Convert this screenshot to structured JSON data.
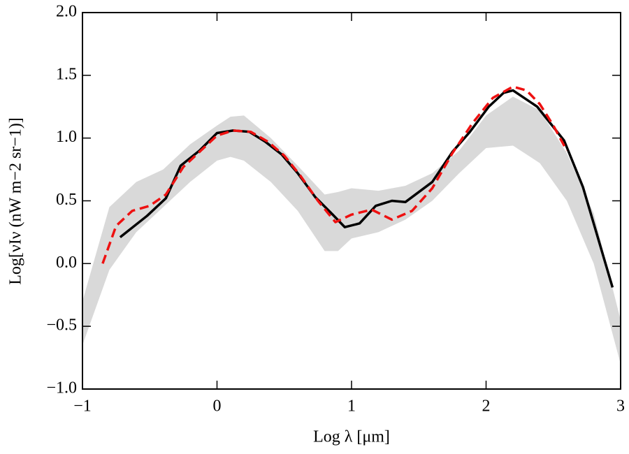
{
  "chart_data": {
    "type": "line",
    "x_label": "Log λ [μm]",
    "y_label": "Log[νIν (nW m−2 sr−1)]",
    "xlim": [
      -1,
      3
    ],
    "ylim": [
      -1,
      2
    ],
    "xticks": [
      {
        "value": -1,
        "label": "−1"
      },
      0,
      1,
      2,
      3
    ],
    "yticks": [
      {
        "value": -1,
        "label": "−1.0"
      },
      {
        "value": -0.5,
        "label": "−0.5"
      },
      {
        "value": 0,
        "label": "0.0"
      },
      {
        "value": 0.5,
        "label": "0.5"
      },
      {
        "value": 1,
        "label": "1.0"
      },
      {
        "value": 1.5,
        "label": "1.5"
      },
      {
        "value": 2,
        "label": "2.0"
      }
    ],
    "band": {
      "color": "#d9d9d9",
      "x": [
        -1,
        -0.8,
        -0.6,
        -0.4,
        -0.2,
        0,
        0.1,
        0.2,
        0.4,
        0.6,
        0.8,
        0.9,
        1.0,
        1.2,
        1.4,
        1.6,
        1.8,
        2.0,
        2.2,
        2.4,
        2.6,
        2.8,
        3.0
      ],
      "lower": [
        -0.65,
        -0.05,
        0.25,
        0.45,
        0.65,
        0.82,
        0.85,
        0.82,
        0.65,
        0.42,
        0.1,
        0.1,
        0.2,
        0.25,
        0.35,
        0.5,
        0.72,
        0.92,
        0.94,
        0.8,
        0.5,
        0.0,
        -0.8
      ],
      "upper": [
        -0.3,
        0.45,
        0.65,
        0.75,
        0.95,
        1.1,
        1.17,
        1.18,
        1.0,
        0.78,
        0.55,
        0.57,
        0.6,
        0.58,
        0.62,
        0.72,
        0.9,
        1.18,
        1.33,
        1.22,
        0.88,
        0.4,
        -0.45
      ]
    },
    "series": [
      {
        "color": "#000000",
        "dash": false,
        "x": [
          -0.72,
          -0.52,
          -0.38,
          -0.27,
          -0.13,
          0.0,
          0.12,
          0.24,
          0.36,
          0.48,
          0.6,
          0.73,
          0.86,
          0.95,
          1.06,
          1.18,
          1.3,
          1.4,
          1.5,
          1.6,
          1.75,
          1.88,
          2.02,
          2.13,
          2.2,
          2.38,
          2.58,
          2.72,
          2.94
        ],
        "values": [
          0.21,
          0.38,
          0.52,
          0.78,
          0.9,
          1.04,
          1.06,
          1.05,
          0.97,
          0.87,
          0.72,
          0.53,
          0.39,
          0.29,
          0.32,
          0.46,
          0.5,
          0.49,
          0.57,
          0.65,
          0.89,
          1.05,
          1.25,
          1.36,
          1.38,
          1.25,
          0.98,
          0.61,
          -0.19
        ]
      },
      {
        "color": "#ee1111",
        "dash": true,
        "x": [
          -0.85,
          -0.75,
          -0.63,
          -0.5,
          -0.38,
          -0.25,
          -0.12,
          0.0,
          0.12,
          0.25,
          0.38,
          0.5,
          0.62,
          0.75,
          0.88,
          1.0,
          1.15,
          1.3,
          1.45,
          1.6,
          1.75,
          1.9,
          2.05,
          2.2,
          2.3,
          2.4,
          2.5,
          2.6
        ],
        "values": [
          0.0,
          0.3,
          0.42,
          0.46,
          0.55,
          0.77,
          0.9,
          1.02,
          1.06,
          1.05,
          0.97,
          0.86,
          0.7,
          0.5,
          0.33,
          0.39,
          0.43,
          0.35,
          0.42,
          0.6,
          0.88,
          1.12,
          1.32,
          1.41,
          1.38,
          1.27,
          1.1,
          0.9
        ]
      }
    ]
  }
}
